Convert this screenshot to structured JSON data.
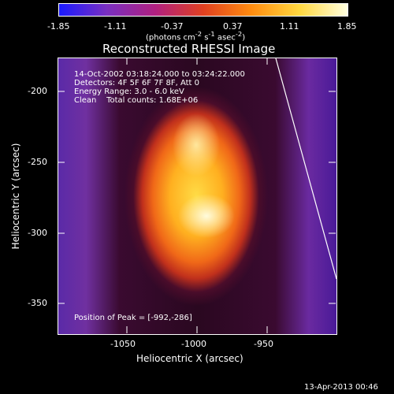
{
  "colorbar": {
    "gradient_stops": [
      "#1a1aff",
      "#7a2fc0",
      "#b02080",
      "#e04020",
      "#ff8c10",
      "#ffd840",
      "#ffffe0"
    ],
    "tick_labels": [
      "-1.85",
      "-1.11",
      "-0.37",
      "0.37",
      "1.11",
      "1.85"
    ],
    "unit_html": "(photons cm<sup>-2</sup> s<sup>-1</sup> asec<sup>-2</sup>)"
  },
  "title": "Reconstructed RHESSI Image",
  "info": {
    "time_range": "14-Oct-2002 03:18:24.000 to 03:24:22.000",
    "detectors": "Detectors: 4F 5F 6F 7F 8F, Att 0",
    "energy": "Energy Range: 3.0 - 6.0 keV",
    "clean": "Clean    Total counts: 1.68E+06",
    "peak": "Position of Peak = [-992,-286]"
  },
  "axes": {
    "xlabel": "Heliocentric X (arcsec)",
    "ylabel": "Heliocentric Y (arcsec)",
    "x_ticks": [
      "-1050",
      "-1000",
      "-950"
    ],
    "y_ticks": [
      "-200",
      "-250",
      "-300",
      "-350"
    ]
  },
  "footer": {
    "date": "13-Apr-2013 00:46"
  }
}
